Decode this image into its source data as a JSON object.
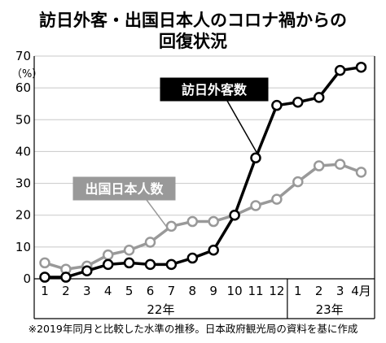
{
  "chart_data": {
    "type": "line",
    "title_line1": "訪日外客・出国日本人のコロナ禍からの",
    "title_line2": "回復状況",
    "unit_label": "（%）",
    "x_labels": [
      "1",
      "2",
      "3",
      "4",
      "5",
      "6",
      "7",
      "8",
      "9",
      "10",
      "11",
      "12",
      "1",
      "2",
      "3",
      "4月"
    ],
    "year_groups": [
      {
        "label": "22年",
        "from": 0,
        "to": 11
      },
      {
        "label": "23年",
        "from": 12,
        "to": 15
      }
    ],
    "ylim": [
      0,
      70
    ],
    "y_ticks": [
      0,
      10,
      20,
      30,
      40,
      50,
      60,
      70
    ],
    "grid": true,
    "series": [
      {
        "name": "訪日外客数",
        "color": "#000000",
        "label_style": "dark-box",
        "values": [
          0.5,
          0.5,
          2.5,
          4.5,
          5.0,
          4.5,
          4.5,
          6.5,
          9.0,
          20.0,
          38.0,
          54.5,
          55.5,
          57.0,
          65.5,
          66.5
        ]
      },
      {
        "name": "出国日本人数",
        "color": "#999999",
        "label_style": "gray-box",
        "values": [
          5.0,
          3.0,
          4.0,
          7.5,
          9.0,
          11.5,
          16.5,
          18.0,
          18.0,
          20.0,
          23.0,
          25.0,
          30.5,
          35.5,
          36.0,
          33.5
        ]
      }
    ],
    "footnote": "※2019年同月と比較した水準の推移。日本政府観光局の資料を基に作成"
  }
}
